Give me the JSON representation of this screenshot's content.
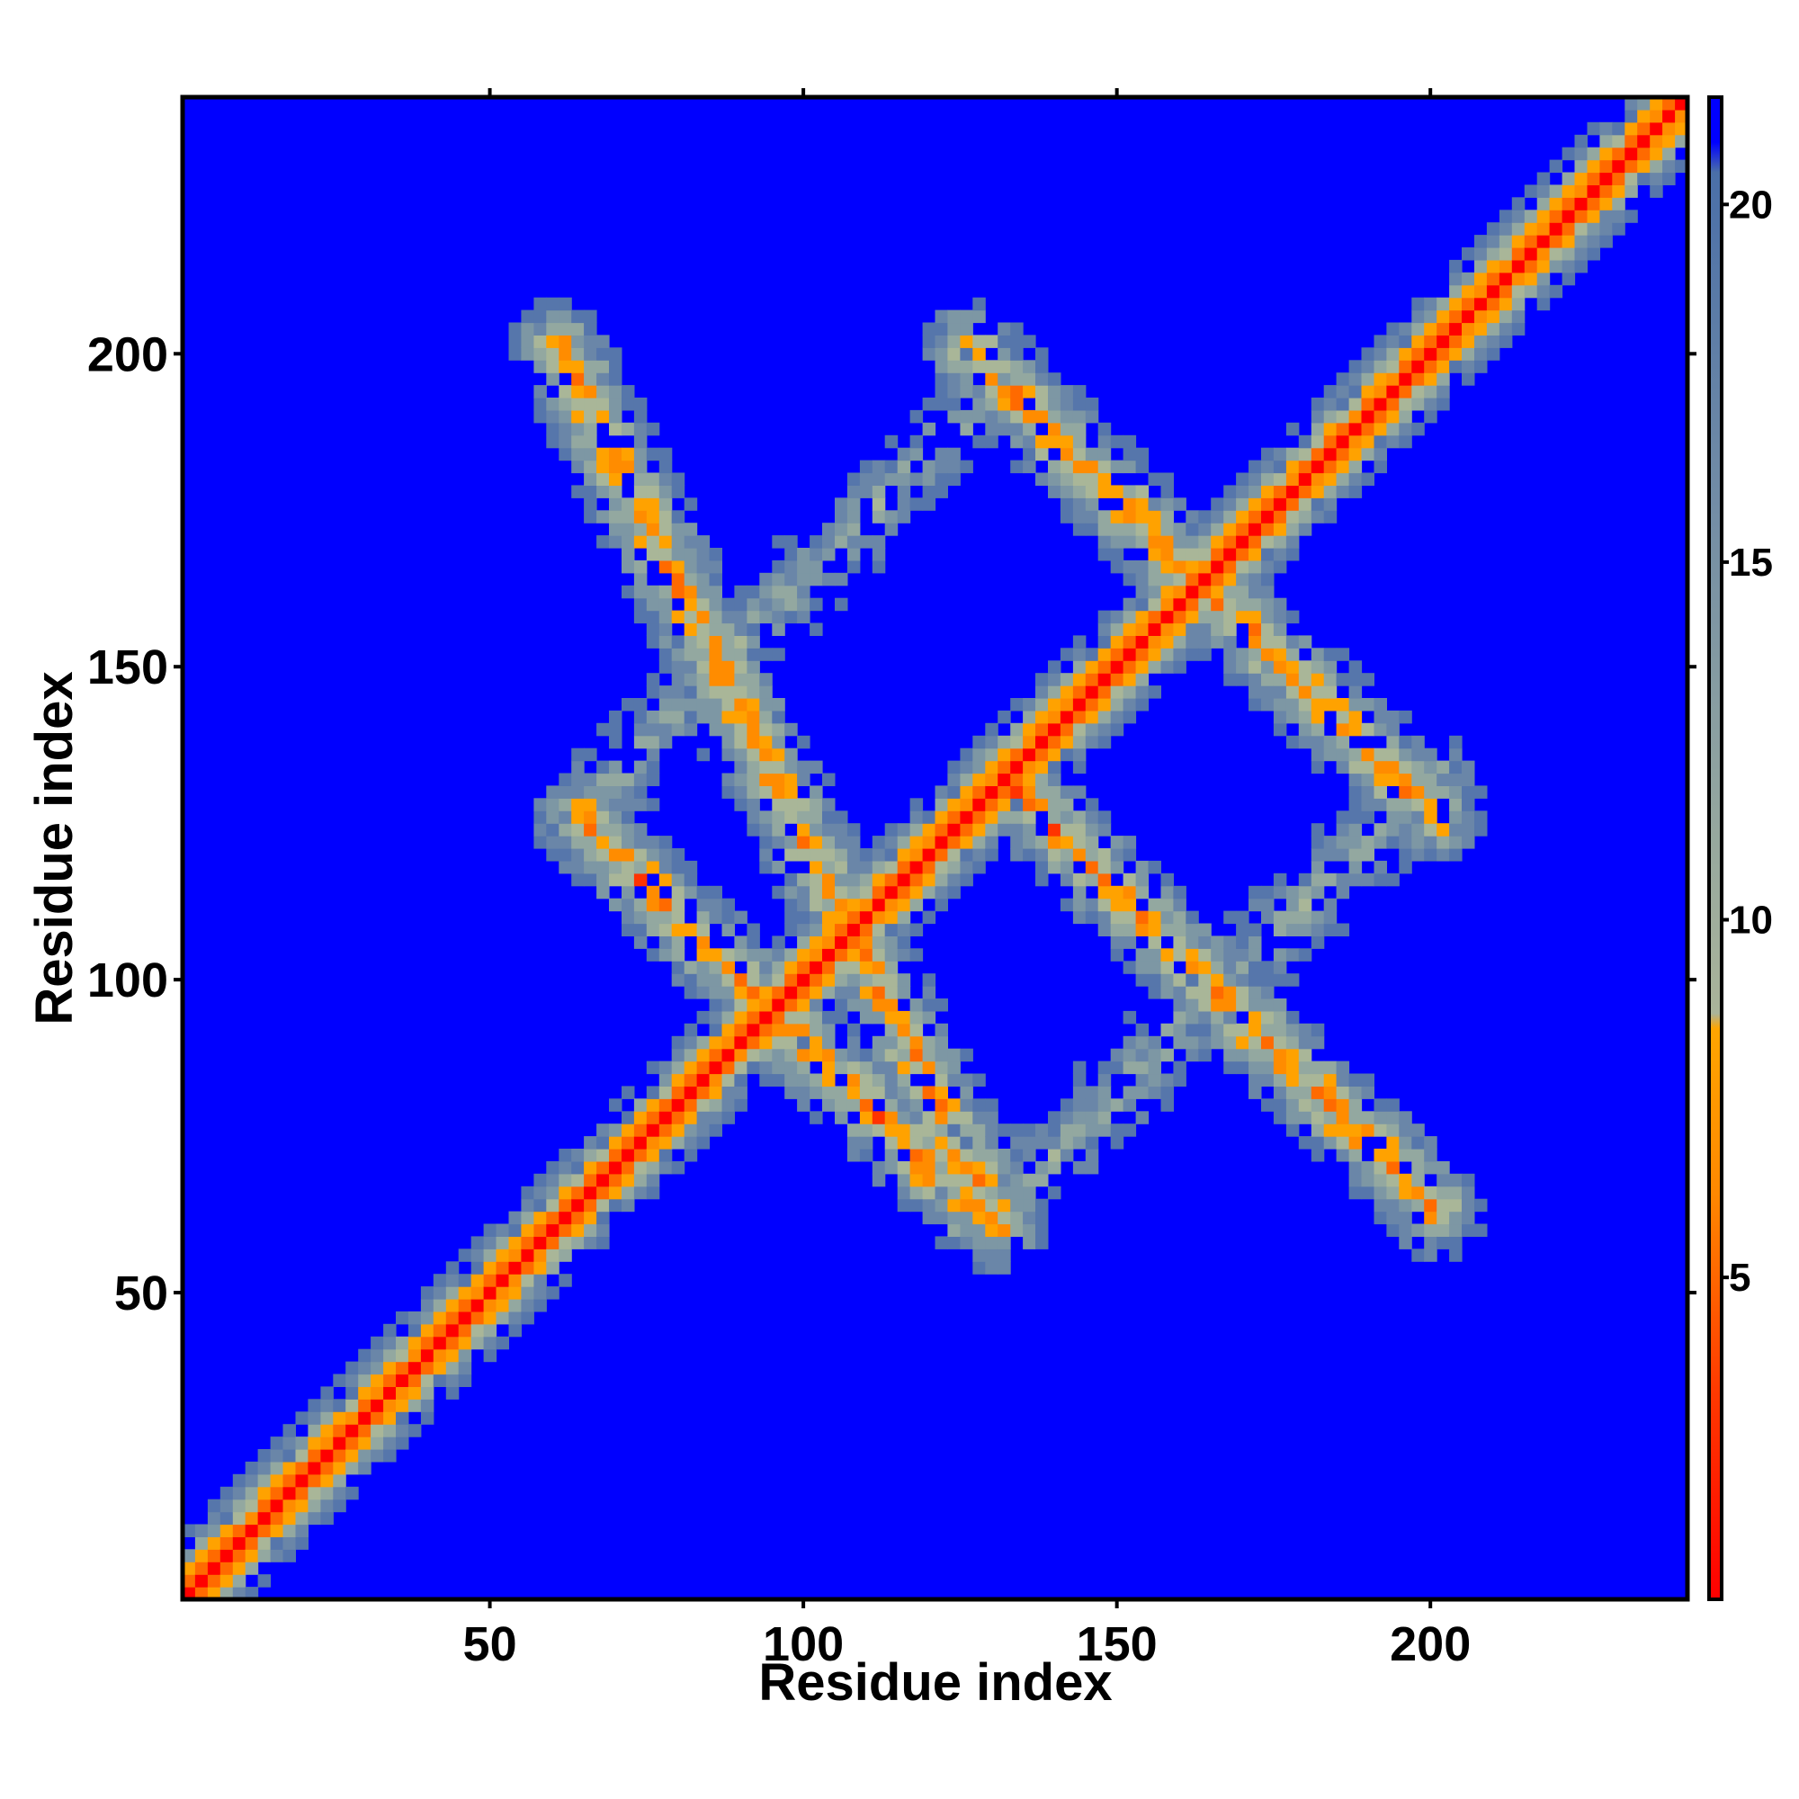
{
  "chart_data": {
    "type": "heatmap",
    "title": "",
    "xlabel": "Residue index",
    "ylabel": "Residue index",
    "xlim": [
      1,
      241
    ],
    "ylim": [
      1,
      241
    ],
    "x_ticks": [
      50,
      100,
      150,
      200
    ],
    "y_ticks": [
      50,
      100,
      150,
      200
    ],
    "colorbar": {
      "range": [
        0.5,
        21.5
      ],
      "ticks": [
        5,
        10,
        15,
        20
      ],
      "colors": [
        "#ff0000",
        "#ff8800",
        "#8fa3a0",
        "#4a6fa8",
        "#0000ff"
      ]
    },
    "background_color": "#0000ff",
    "features": [
      {
        "kind": "main-diagonal",
        "from": [
          1,
          1
        ],
        "to": [
          241,
          241
        ],
        "min_value": 1
      },
      {
        "kind": "anti-parallel-band",
        "from": [
          60,
          200
        ],
        "to": [
          130,
          60
        ],
        "min_value": 6
      },
      {
        "kind": "anti-parallel-band",
        "from": [
          63,
          125
        ],
        "to": [
          125,
          63
        ],
        "min_value": 6
      },
      {
        "kind": "anti-parallel-band",
        "from": [
          125,
          200
        ],
        "to": [
          200,
          125
        ],
        "min_value": 6
      },
      {
        "kind": "anti-parallel-band",
        "from": [
          130,
          132
        ],
        "to": [
          200,
          62
        ],
        "min_value": 6
      },
      {
        "kind": "parallel-band",
        "from": [
          63,
          125
        ],
        "to": [
          130,
          195
        ],
        "min_value": 12
      },
      {
        "kind": "parallel-band",
        "from": [
          130,
          62
        ],
        "to": [
          200,
          132
        ],
        "min_value": 12
      }
    ]
  }
}
